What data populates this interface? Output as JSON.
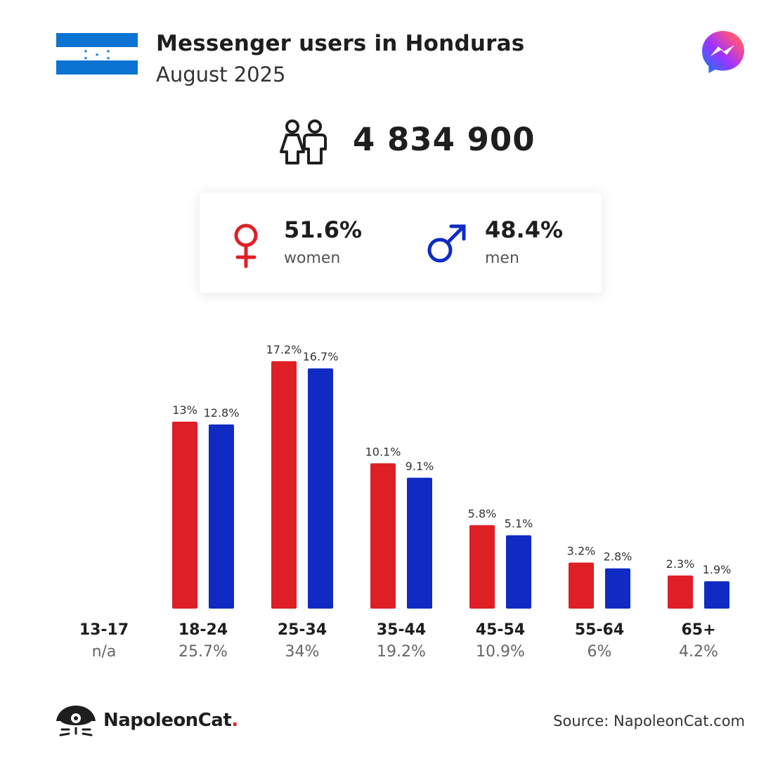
{
  "header": {
    "title": "Messenger users in Honduras",
    "subtitle": "August 2025"
  },
  "summary": {
    "total_users": "4 834 900"
  },
  "gender": {
    "women_pct": "51.6%",
    "women_label": "women",
    "men_pct": "48.4%",
    "men_label": "men"
  },
  "age_groups": [
    {
      "name": "13-17",
      "share": "n/a"
    },
    {
      "name": "18-24",
      "share": "25.7%"
    },
    {
      "name": "25-34",
      "share": "34%"
    },
    {
      "name": "35-44",
      "share": "19.2%"
    },
    {
      "name": "45-54",
      "share": "10.9%"
    },
    {
      "name": "55-64",
      "share": "6%"
    },
    {
      "name": "65+",
      "share": "4.2%"
    }
  ],
  "chart_data": {
    "type": "bar",
    "title": "Messenger users in Honduras",
    "categories": [
      "13-17",
      "18-24",
      "25-34",
      "35-44",
      "45-54",
      "55-64",
      "65+"
    ],
    "series": [
      {
        "name": "women",
        "values": [
          null,
          13,
          17.2,
          10.1,
          5.8,
          3.2,
          2.3
        ],
        "labels": [
          "",
          "13%",
          "17.2%",
          "10.1%",
          "5.8%",
          "3.2%",
          "2.3%"
        ]
      },
      {
        "name": "men",
        "values": [
          null,
          12.8,
          16.7,
          9.1,
          5.1,
          2.8,
          1.9
        ],
        "labels": [
          "",
          "12.8%",
          "16.7%",
          "9.1%",
          "5.1%",
          "2.8%",
          "1.9%"
        ]
      }
    ],
    "ylim": [
      0,
      17.2
    ],
    "grid": false,
    "legend": "none"
  },
  "colors": {
    "women": "#df1f26",
    "men": "#0f2bc3",
    "flag_blue": "#0b73d1"
  },
  "footer": {
    "brand_name": "NapoleonCat",
    "brand_dot": ".",
    "source": "Source: NapoleonCat.com"
  }
}
